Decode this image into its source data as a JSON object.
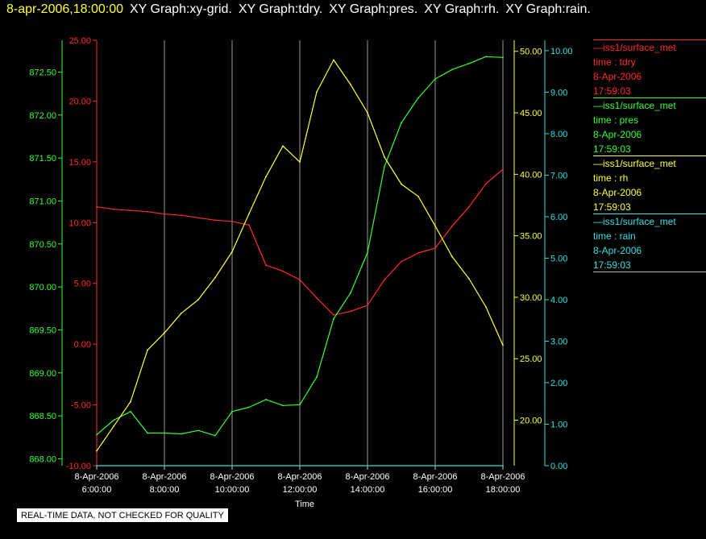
{
  "header": {
    "timestamp": "8-apr-2006,18:00:00",
    "graphs": [
      "XY Graph:xy-grid.",
      "XY Graph:tdry.",
      "XY Graph:pres.",
      "XY Graph:rh.",
      "XY Graph:rain."
    ]
  },
  "notice": "REAL-TIME DATA, NOT CHECKED FOR QUALITY",
  "legend": [
    {
      "name": "iss1/surface_met",
      "label": "time : tdry",
      "date": "8-Apr-2006",
      "time": "17:59:03",
      "color": "#ff2a2a"
    },
    {
      "name": "iss1/surface_met",
      "label": "time : pres",
      "date": "8-Apr-2006",
      "time": "17:59:03",
      "color": "#33ff33"
    },
    {
      "name": "iss1/surface_met",
      "label": "time : rh",
      "date": "8-Apr-2006",
      "time": "17:59:03",
      "color": "#ffff33"
    },
    {
      "name": "iss1/surface_met",
      "label": "time : rain",
      "date": "8-Apr-2006",
      "time": "17:59:03",
      "color": "#33e0e0"
    }
  ],
  "chart_data": {
    "type": "line",
    "xlabel": "Time",
    "x_ticks": [
      {
        "date": "8-Apr-2006",
        "time": "6:00:00",
        "hours": 6
      },
      {
        "date": "8-Apr-2006",
        "time": "8:00:00",
        "hours": 8
      },
      {
        "date": "8-Apr-2006",
        "time": "10:00:00",
        "hours": 10
      },
      {
        "date": "8-Apr-2006",
        "time": "12:00:00",
        "hours": 12
      },
      {
        "date": "8-Apr-2006",
        "time": "14:00:00",
        "hours": 14
      },
      {
        "date": "8-Apr-2006",
        "time": "16:00:00",
        "hours": 16
      },
      {
        "date": "8-Apr-2006",
        "time": "18:00:00",
        "hours": 18
      }
    ],
    "xlim_hours": [
      6,
      18
    ],
    "grid": true,
    "axes": {
      "pres": {
        "color": "#33ff33",
        "ylim": [
          867.92,
          872.87
        ],
        "ticks": [
          "868.00",
          "868.50",
          "869.00",
          "869.50",
          "870.00",
          "870.50",
          "871.00",
          "871.50",
          "872.00",
          "872.50"
        ]
      },
      "tdry": {
        "color": "#ff2a2a",
        "ylim": [
          -10,
          25
        ],
        "ticks": [
          "-10.00",
          "-5.00",
          "0.00",
          "5.00",
          "10.00",
          "15.00",
          "20.00",
          "25.00"
        ]
      },
      "rh": {
        "color": "#ffff33",
        "ylim": [
          16.3,
          50.9
        ],
        "ticks": [
          "20.00",
          "25.00",
          "30.00",
          "35.00",
          "40.00",
          "45.00",
          "50.00"
        ]
      },
      "rain": {
        "color": "#33e0e0",
        "ylim": [
          0,
          10.25
        ],
        "ticks": [
          "0.00",
          "1.00",
          "2.00",
          "3.00",
          "4.00",
          "5.00",
          "6.00",
          "7.00",
          "8.00",
          "9.00",
          "10.00"
        ]
      }
    },
    "series": [
      {
        "name": "tdry",
        "axis": "tdry",
        "color": "#ff2a2a",
        "x": [
          6,
          6.5,
          7,
          7.5,
          8,
          8.5,
          9,
          9.5,
          10,
          10.5,
          11,
          11.5,
          12,
          12.5,
          13,
          13.5,
          14,
          14.5,
          15,
          15.5,
          16,
          16.5,
          17,
          17.5,
          18
        ],
        "y": [
          11.3,
          11.1,
          11.0,
          10.9,
          10.7,
          10.6,
          10.4,
          10.2,
          10.1,
          9.8,
          6.5,
          6.0,
          5.3,
          3.8,
          2.4,
          2.7,
          3.2,
          5.3,
          6.8,
          7.5,
          7.9,
          9.7,
          11.3,
          13.2,
          14.4
        ]
      },
      {
        "name": "pres",
        "axis": "pres",
        "color": "#33ff33",
        "x": [
          6,
          6.5,
          7,
          7.5,
          8,
          8.5,
          9,
          9.5,
          10,
          10.5,
          11,
          11.5,
          12,
          12.5,
          13,
          13.5,
          14,
          14.5,
          15,
          15.5,
          16,
          16.5,
          17,
          17.5,
          18
        ],
        "y": [
          868.28,
          868.45,
          868.55,
          868.3,
          868.3,
          868.29,
          868.33,
          868.27,
          868.55,
          868.6,
          868.69,
          868.62,
          868.63,
          868.95,
          869.63,
          869.93,
          870.4,
          871.4,
          871.91,
          872.2,
          872.42,
          872.53,
          872.6,
          872.68,
          872.67
        ]
      },
      {
        "name": "rh",
        "axis": "rh",
        "color": "#ffff33",
        "x": [
          6,
          6.5,
          7,
          7.5,
          8,
          8.5,
          9,
          9.5,
          10,
          10.5,
          11,
          11.5,
          12,
          12.5,
          13,
          13.5,
          14,
          14.5,
          15,
          15.5,
          16,
          16.5,
          17,
          17.5,
          18
        ],
        "y": [
          17.5,
          19.5,
          21.5,
          25.7,
          27.1,
          28.7,
          29.8,
          31.6,
          33.7,
          36.8,
          39.8,
          42.3,
          41.0,
          46.7,
          49.3,
          47.3,
          45.0,
          41.4,
          39.2,
          38.2,
          35.8,
          33.3,
          31.5,
          29.2,
          26.1
        ]
      },
      {
        "name": "rain",
        "axis": "rain",
        "color": "#33e0e0",
        "x": [
          6,
          18
        ],
        "y": [
          0,
          0
        ]
      }
    ]
  }
}
